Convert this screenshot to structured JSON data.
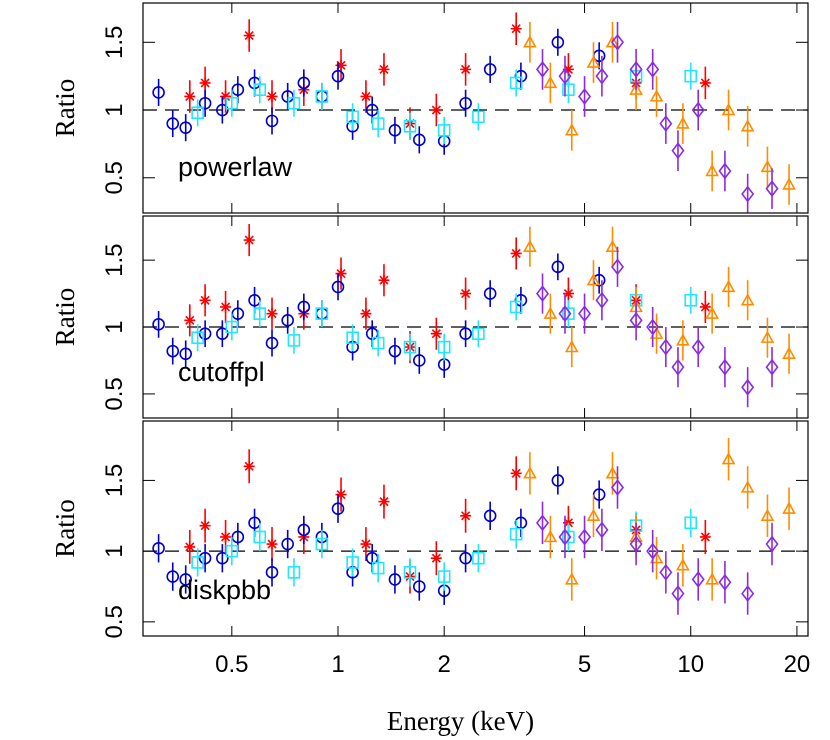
{
  "chart_data": [
    {
      "type": "scatter",
      "ylabel": "Ratio",
      "annotation": "powerlaw",
      "log_x": true,
      "reference_line": 1,
      "xlim": [
        0.28,
        21.5
      ],
      "xticks": [
        0.5,
        1,
        2,
        5,
        10,
        20
      ],
      "ylim": [
        0.24,
        1.79
      ],
      "yticks": [
        0.5,
        1,
        1.5
      ],
      "series": [
        {
          "color": "#ff0000",
          "marker": "asterisk",
          "yerr": 0.12,
          "x": [
            0.38,
            0.42,
            0.48,
            0.56,
            0.65,
            0.8,
            1.02,
            1.2,
            1.35,
            1.6,
            1.9,
            2.3,
            3.2,
            4.5,
            7,
            11
          ],
          "values": [
            1.1,
            1.2,
            1.1,
            1.55,
            1.1,
            1.15,
            1.33,
            1.1,
            1.3,
            0.9,
            1.0,
            1.3,
            1.6,
            1.3,
            1.2,
            1.2
          ]
        },
        {
          "color": "#0000cc",
          "marker": "circle",
          "yerr": 0.1,
          "x": [
            0.31,
            0.34,
            0.37,
            0.42,
            0.47,
            0.52,
            0.58,
            0.65,
            0.72,
            0.8,
            0.9,
            1.0,
            1.1,
            1.25,
            1.45,
            1.7,
            2.0,
            2.3,
            2.7,
            3.3,
            4.2,
            5.5
          ],
          "values": [
            1.13,
            0.9,
            0.87,
            1.05,
            1.0,
            1.15,
            1.2,
            0.92,
            1.1,
            1.2,
            1.1,
            1.25,
            0.88,
            1.0,
            0.85,
            0.78,
            0.77,
            1.05,
            1.3,
            1.25,
            1.5,
            1.4
          ]
        },
        {
          "color": "#22e6ff",
          "marker": "square",
          "yerr": 0.1,
          "x": [
            0.4,
            0.5,
            0.6,
            0.75,
            0.9,
            1.1,
            1.3,
            1.6,
            2.0,
            2.5,
            3.2,
            4.5,
            7,
            10
          ],
          "values": [
            0.98,
            1.05,
            1.15,
            1.05,
            1.1,
            0.95,
            0.9,
            0.88,
            0.85,
            0.95,
            1.2,
            1.15,
            1.25,
            1.25
          ]
        },
        {
          "color": "#ff8c00",
          "marker": "triangle",
          "yerr": 0.15,
          "x": [
            3.5,
            4.0,
            4.6,
            5.3,
            6.0,
            7.0,
            8.0,
            9.5,
            11.5,
            12.8,
            14.5,
            16.5,
            19
          ],
          "values": [
            1.5,
            1.2,
            0.85,
            1.35,
            1.5,
            1.15,
            1.1,
            0.9,
            0.55,
            1.0,
            0.88,
            0.58,
            0.45
          ]
        },
        {
          "color": "#8a2be2",
          "marker": "diamond",
          "yerr": 0.15,
          "x": [
            3.8,
            4.4,
            5.0,
            5.6,
            6.2,
            7.0,
            7.8,
            8.5,
            9.2,
            10.5,
            12.5,
            14.5,
            17
          ],
          "values": [
            1.3,
            1.25,
            1.1,
            1.25,
            1.5,
            1.3,
            1.3,
            0.9,
            0.7,
            1.0,
            0.55,
            0.38,
            0.42
          ]
        }
      ]
    },
    {
      "type": "scatter",
      "ylabel": "Ratio",
      "annotation": "cutoffpl",
      "log_x": true,
      "reference_line": 1,
      "xlim": [
        0.28,
        21.5
      ],
      "xticks": [
        0.5,
        1,
        2,
        5,
        10,
        20
      ],
      "ylim": [
        0.32,
        1.83
      ],
      "yticks": [
        0.5,
        1,
        1.5
      ],
      "series": [
        {
          "color": "#ff0000",
          "marker": "asterisk",
          "yerr": 0.12,
          "x": [
            0.38,
            0.42,
            0.48,
            0.56,
            0.65,
            0.8,
            1.02,
            1.2,
            1.35,
            1.6,
            1.9,
            2.3,
            3.2,
            4.5,
            7,
            11
          ],
          "values": [
            1.05,
            1.2,
            1.15,
            1.65,
            1.1,
            1.1,
            1.4,
            1.1,
            1.35,
            0.85,
            0.95,
            1.25,
            1.55,
            1.25,
            1.2,
            1.15
          ]
        },
        {
          "color": "#0000cc",
          "marker": "circle",
          "yerr": 0.1,
          "x": [
            0.31,
            0.34,
            0.37,
            0.42,
            0.47,
            0.52,
            0.58,
            0.65,
            0.72,
            0.8,
            0.9,
            1.0,
            1.1,
            1.25,
            1.45,
            1.7,
            2.0,
            2.3,
            2.7,
            3.3,
            4.2,
            5.5
          ],
          "values": [
            1.02,
            0.82,
            0.8,
            0.95,
            0.95,
            1.1,
            1.2,
            0.88,
            1.05,
            1.15,
            1.1,
            1.3,
            0.85,
            0.95,
            0.82,
            0.75,
            0.72,
            0.95,
            1.25,
            1.2,
            1.45,
            1.35
          ]
        },
        {
          "color": "#22e6ff",
          "marker": "square",
          "yerr": 0.1,
          "x": [
            0.4,
            0.5,
            0.6,
            0.75,
            0.9,
            1.1,
            1.3,
            1.6,
            2.0,
            2.5,
            3.2,
            4.5,
            7,
            10
          ],
          "values": [
            0.92,
            1.0,
            1.1,
            0.9,
            1.1,
            0.92,
            0.88,
            0.85,
            0.85,
            0.95,
            1.15,
            1.1,
            1.2,
            1.2
          ]
        },
        {
          "color": "#ff8c00",
          "marker": "triangle",
          "yerr": 0.15,
          "x": [
            3.5,
            4.0,
            4.6,
            5.3,
            6.0,
            7.0,
            8.0,
            9.5,
            11.5,
            12.8,
            14.5,
            16.5,
            19
          ],
          "values": [
            1.6,
            1.1,
            0.85,
            1.35,
            1.6,
            1.15,
            0.95,
            0.9,
            1.1,
            1.3,
            1.2,
            0.92,
            0.8
          ]
        },
        {
          "color": "#8a2be2",
          "marker": "diamond",
          "yerr": 0.15,
          "x": [
            3.8,
            4.4,
            5.0,
            5.6,
            6.2,
            7.0,
            7.8,
            8.5,
            9.2,
            10.5,
            12.5,
            14.5,
            17
          ],
          "values": [
            1.25,
            1.1,
            1.1,
            1.2,
            1.45,
            1.05,
            1.0,
            0.85,
            0.7,
            0.85,
            0.7,
            0.55,
            0.7
          ]
        }
      ]
    },
    {
      "type": "scatter",
      "ylabel": "Ratio",
      "annotation": "diskpbb",
      "xlabel": "Energy (keV)",
      "log_x": true,
      "reference_line": 1,
      "xlim": [
        0.28,
        21.5
      ],
      "xticks": [
        0.5,
        1,
        2,
        5,
        10,
        20
      ],
      "ylim": [
        0.4,
        1.92
      ],
      "yticks": [
        0.5,
        1,
        1.5
      ],
      "series": [
        {
          "color": "#ff0000",
          "marker": "asterisk",
          "yerr": 0.12,
          "x": [
            0.38,
            0.42,
            0.48,
            0.56,
            0.65,
            0.8,
            1.02,
            1.2,
            1.35,
            1.6,
            1.9,
            2.3,
            3.2,
            4.5,
            7,
            11
          ],
          "values": [
            1.03,
            1.18,
            1.1,
            1.6,
            1.05,
            1.1,
            1.4,
            1.05,
            1.35,
            0.82,
            0.95,
            1.25,
            1.55,
            1.2,
            1.15,
            1.1
          ]
        },
        {
          "color": "#0000cc",
          "marker": "circle",
          "yerr": 0.1,
          "x": [
            0.31,
            0.34,
            0.37,
            0.42,
            0.47,
            0.52,
            0.58,
            0.65,
            0.72,
            0.8,
            0.9,
            1.0,
            1.1,
            1.25,
            1.45,
            1.7,
            2.0,
            2.3,
            2.7,
            3.3,
            4.2,
            5.5
          ],
          "values": [
            1.02,
            0.82,
            0.8,
            0.95,
            0.95,
            1.1,
            1.2,
            0.85,
            1.05,
            1.15,
            1.1,
            1.3,
            0.85,
            0.95,
            0.8,
            0.75,
            0.72,
            0.95,
            1.25,
            1.2,
            1.5,
            1.4
          ]
        },
        {
          "color": "#22e6ff",
          "marker": "square",
          "yerr": 0.1,
          "x": [
            0.4,
            0.5,
            0.6,
            0.75,
            0.9,
            1.1,
            1.3,
            1.6,
            2.0,
            2.5,
            3.2,
            4.5,
            7,
            10
          ],
          "values": [
            0.92,
            1.0,
            1.1,
            0.85,
            1.05,
            0.92,
            0.88,
            0.85,
            0.82,
            0.95,
            1.12,
            1.1,
            1.18,
            1.2
          ]
        },
        {
          "color": "#ff8c00",
          "marker": "triangle",
          "yerr": 0.15,
          "x": [
            3.5,
            4.0,
            4.6,
            5.3,
            6.0,
            7.0,
            8.0,
            9.5,
            11.5,
            12.8,
            14.5,
            16.5,
            19
          ],
          "values": [
            1.55,
            1.1,
            0.8,
            1.25,
            1.55,
            1.1,
            0.95,
            0.9,
            0.8,
            1.65,
            1.45,
            1.25,
            1.3
          ]
        },
        {
          "color": "#8a2be2",
          "marker": "diamond",
          "yerr": 0.15,
          "x": [
            3.8,
            4.4,
            5.0,
            5.6,
            6.2,
            7.0,
            7.8,
            8.5,
            9.2,
            10.5,
            12.5,
            14.5,
            17
          ],
          "values": [
            1.2,
            1.1,
            1.1,
            1.15,
            1.45,
            1.05,
            1.0,
            0.85,
            0.7,
            0.8,
            0.78,
            0.7,
            1.05
          ]
        }
      ]
    }
  ]
}
